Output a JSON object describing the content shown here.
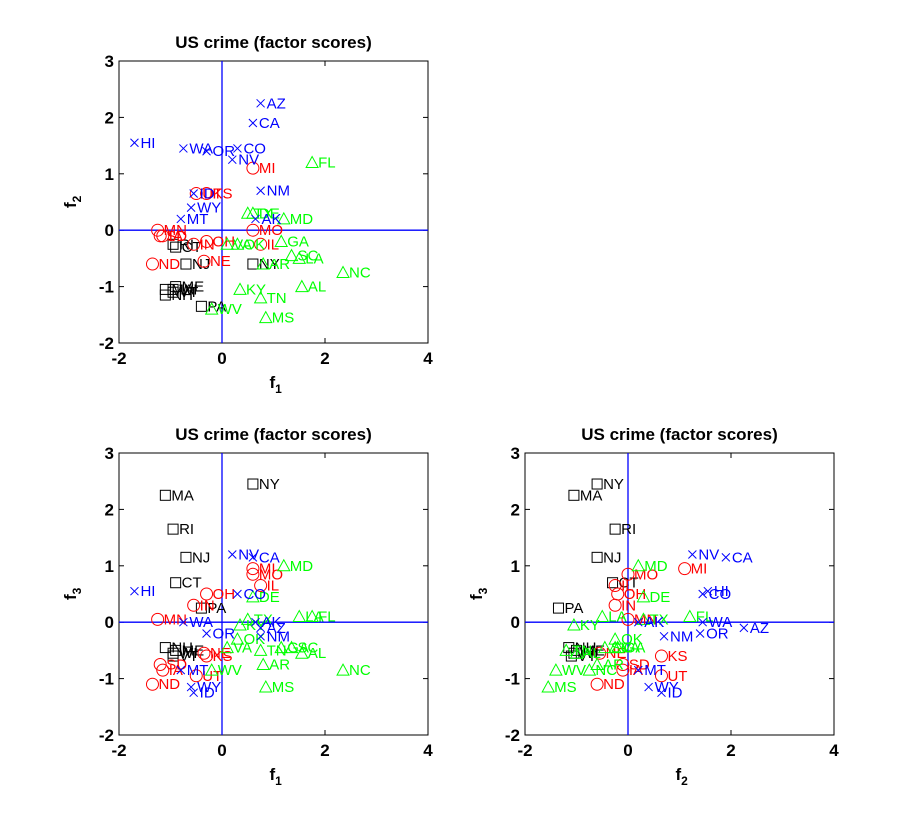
{
  "colors": {
    "cluster1": "#000000",
    "cluster2": "#ff0000",
    "cluster3": "#00ff00",
    "cluster4": "#0000ff",
    "zero_lines": "#0000ff"
  },
  "marker_legend": {
    "cluster1": "square",
    "cluster2": "circle",
    "cluster3": "triangle",
    "cluster4": "x"
  },
  "chart_data": [
    {
      "type": "scatter",
      "title": "US crime (factor scores)",
      "xlabel": {
        "main": "f",
        "sub": "1"
      },
      "ylabel": {
        "main": "f",
        "sub": "2"
      },
      "x_key": "f1",
      "y_key": "f2",
      "xlim": [
        -2,
        4
      ],
      "ylim": [
        -2,
        3
      ],
      "xticks": [
        "-2",
        "0",
        "2",
        "4"
      ],
      "yticks": [
        "-2",
        "-1",
        "0",
        "1",
        "2",
        "3"
      ],
      "zero_lines": true,
      "grid": false
    },
    {
      "type": "scatter",
      "title": "US crime (factor scores)",
      "xlabel": {
        "main": "f",
        "sub": "1"
      },
      "ylabel": {
        "main": "f",
        "sub": "3"
      },
      "x_key": "f1",
      "y_key": "f3",
      "xlim": [
        -2,
        4
      ],
      "ylim": [
        -2,
        3
      ],
      "xticks": [
        "-2",
        "0",
        "2",
        "4"
      ],
      "yticks": [
        "-2",
        "-1",
        "0",
        "1",
        "2",
        "3"
      ],
      "zero_lines": true,
      "grid": false
    },
    {
      "type": "scatter",
      "title": "US crime (factor scores)",
      "xlabel": {
        "main": "f",
        "sub": "2"
      },
      "ylabel": {
        "main": "f",
        "sub": "3"
      },
      "x_key": "f2",
      "y_key": "f3",
      "xlim": [
        -2,
        4
      ],
      "ylim": [
        -2,
        3
      ],
      "xticks": [
        "-2",
        "0",
        "2",
        "4"
      ],
      "yticks": [
        "-2",
        "-1",
        "0",
        "1",
        "2",
        "3"
      ],
      "zero_lines": true,
      "grid": false
    }
  ],
  "points": [
    {
      "label": "MA",
      "cluster": "cluster1",
      "f1": -1.1,
      "f2": -1.05,
      "f3": 2.25
    },
    {
      "label": "RI",
      "cluster": "cluster1",
      "f1": -0.95,
      "f2": -0.25,
      "f3": 1.65
    },
    {
      "label": "NJ",
      "cluster": "cluster1",
      "f1": -0.7,
      "f2": -0.6,
      "f3": 1.15
    },
    {
      "label": "CT",
      "cluster": "cluster1",
      "f1": -0.9,
      "f2": -0.3,
      "f3": 0.7
    },
    {
      "label": "NY",
      "cluster": "cluster1",
      "f1": 0.6,
      "f2": -0.6,
      "f3": 2.45
    },
    {
      "label": "PA",
      "cluster": "cluster1",
      "f1": -0.4,
      "f2": -1.35,
      "f3": 0.25
    },
    {
      "label": "NH",
      "cluster": "cluster1",
      "f1": -1.1,
      "f2": -1.15,
      "f3": -0.45
    },
    {
      "label": "ME",
      "cluster": "cluster1",
      "f1": -0.9,
      "f2": -1.0,
      "f3": -0.5
    },
    {
      "label": "VT",
      "cluster": "cluster1",
      "f1": -0.95,
      "f2": -1.1,
      "f3": -0.6
    },
    {
      "label": "WI",
      "cluster": "cluster1",
      "f1": -0.95,
      "f2": -1.05,
      "f3": -0.55
    },
    {
      "label": "MI",
      "cluster": "cluster2",
      "f1": 0.6,
      "f2": 1.1,
      "f3": 0.95
    },
    {
      "label": "MO",
      "cluster": "cluster2",
      "f1": 0.6,
      "f2": 0.0,
      "f3": 0.85
    },
    {
      "label": "IL",
      "cluster": "cluster2",
      "f1": 0.75,
      "f2": -0.25,
      "f3": 0.65
    },
    {
      "label": "OH",
      "cluster": "cluster2",
      "f1": -0.3,
      "f2": -0.2,
      "f3": 0.5
    },
    {
      "label": "IN",
      "cluster": "cluster2",
      "f1": -0.55,
      "f2": -0.25,
      "f3": 0.3
    },
    {
      "label": "KS",
      "cluster": "cluster2",
      "f1": -0.3,
      "f2": 0.65,
      "f3": -0.6
    },
    {
      "label": "MN",
      "cluster": "cluster2",
      "f1": -1.25,
      "f2": 0.0,
      "f3": 0.05
    },
    {
      "label": "NE",
      "cluster": "cluster2",
      "f1": -0.35,
      "f2": -0.55,
      "f3": -0.55
    },
    {
      "label": "IA",
      "cluster": "cluster2",
      "f1": -1.15,
      "f2": -0.1,
      "f3": -0.85
    },
    {
      "label": "SD",
      "cluster": "cluster2",
      "f1": -1.2,
      "f2": -0.1,
      "f3": -0.75
    },
    {
      "label": "ND",
      "cluster": "cluster2",
      "f1": -1.35,
      "f2": -0.6,
      "f3": -1.1
    },
    {
      "label": "UT",
      "cluster": "cluster2",
      "f1": -0.5,
      "f2": 0.65,
      "f3": -0.95
    },
    {
      "label": "FL",
      "cluster": "cluster3",
      "f1": 1.75,
      "f2": 1.2,
      "f3": 0.1
    },
    {
      "label": "MD",
      "cluster": "cluster3",
      "f1": 1.2,
      "f2": 0.2,
      "f3": 1.0
    },
    {
      "label": "TX",
      "cluster": "cluster3",
      "f1": 0.5,
      "f2": 0.3,
      "f3": 0.05
    },
    {
      "label": "DE",
      "cluster": "cluster3",
      "f1": 0.6,
      "f2": 0.3,
      "f3": 0.45
    },
    {
      "label": "LA",
      "cluster": "cluster3",
      "f1": 1.5,
      "f2": -0.5,
      "f3": 0.1
    },
    {
      "label": "GA",
      "cluster": "cluster3",
      "f1": 1.15,
      "f2": -0.2,
      "f3": -0.45
    },
    {
      "label": "SC",
      "cluster": "cluster3",
      "f1": 1.35,
      "f2": -0.45,
      "f3": -0.45
    },
    {
      "label": "NC",
      "cluster": "cluster3",
      "f1": 2.35,
      "f2": -0.75,
      "f3": -0.85
    },
    {
      "label": "AL",
      "cluster": "cluster3",
      "f1": 1.55,
      "f2": -1.0,
      "f3": -0.55
    },
    {
      "label": "AR",
      "cluster": "cluster3",
      "f1": 0.8,
      "f2": -0.6,
      "f3": -0.75
    },
    {
      "label": "TN",
      "cluster": "cluster3",
      "f1": 0.75,
      "f2": -1.2,
      "f3": -0.5
    },
    {
      "label": "MS",
      "cluster": "cluster3",
      "f1": 0.85,
      "f2": -1.55,
      "f3": -1.15
    },
    {
      "label": "KY",
      "cluster": "cluster3",
      "f1": 0.35,
      "f2": -1.05,
      "f3": -0.05
    },
    {
      "label": "WV",
      "cluster": "cluster3",
      "f1": -0.2,
      "f2": -1.4,
      "f3": -0.85
    },
    {
      "label": "VA",
      "cluster": "cluster3",
      "f1": 0.1,
      "f2": -0.25,
      "f3": -0.45
    },
    {
      "label": "OK",
      "cluster": "cluster3",
      "f1": 0.3,
      "f2": -0.25,
      "f3": -0.3
    },
    {
      "label": "NM",
      "cluster": "cluster4",
      "f1": 0.75,
      "f2": 0.7,
      "f3": -0.25
    },
    {
      "label": "AZ",
      "cluster": "cluster4",
      "f1": 0.75,
      "f2": 2.25,
      "f3": -0.1
    },
    {
      "label": "CA",
      "cluster": "cluster4",
      "f1": 0.6,
      "f2": 1.9,
      "f3": 1.15
    },
    {
      "label": "CO",
      "cluster": "cluster4",
      "f1": 0.3,
      "f2": 1.45,
      "f3": 0.5
    },
    {
      "label": "NV",
      "cluster": "cluster4",
      "f1": 0.2,
      "f2": 1.25,
      "f3": 1.2
    },
    {
      "label": "HI",
      "cluster": "cluster4",
      "f1": -1.7,
      "f2": 1.55,
      "f3": 0.55
    },
    {
      "label": "WA",
      "cluster": "cluster4",
      "f1": -0.75,
      "f2": 1.45,
      "f3": 0.0
    },
    {
      "label": "OR",
      "cluster": "cluster4",
      "f1": -0.3,
      "f2": 1.4,
      "f3": -0.2
    },
    {
      "label": "AK",
      "cluster": "cluster4",
      "f1": 0.65,
      "f2": 0.2,
      "f3": 0.0
    },
    {
      "label": "MT",
      "cluster": "cluster4",
      "f1": -0.8,
      "f2": 0.2,
      "f3": -0.85
    },
    {
      "label": "WY",
      "cluster": "cluster4",
      "f1": -0.6,
      "f2": 0.4,
      "f3": -1.15
    },
    {
      "label": "ID",
      "cluster": "cluster4",
      "f1": -0.55,
      "f2": 0.65,
      "f3": -1.25
    }
  ]
}
